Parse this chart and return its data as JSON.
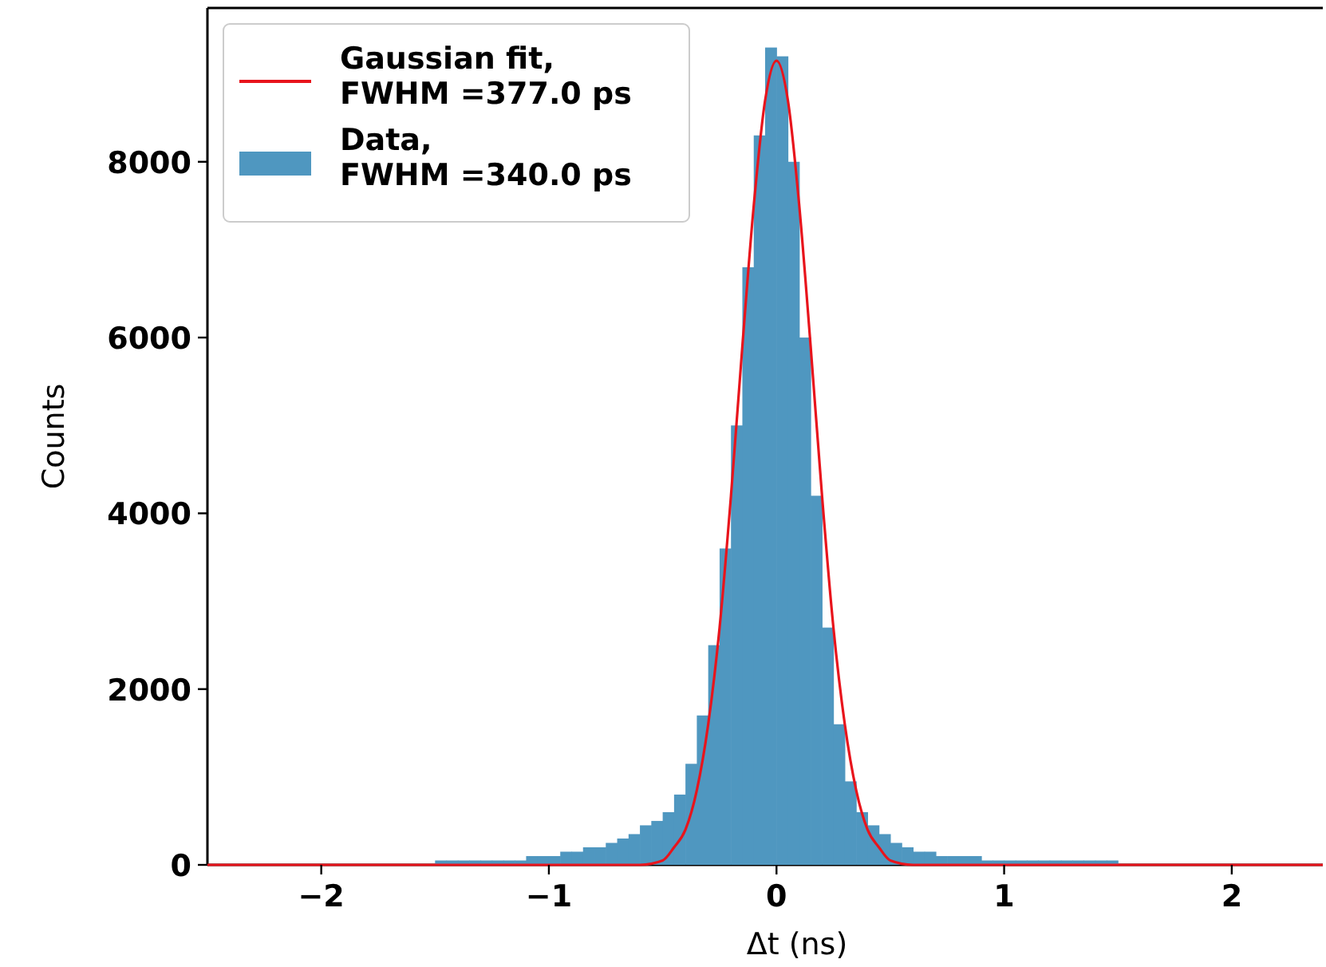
{
  "chart_data": {
    "type": "histogram",
    "xlabel": "Δt (ns)",
    "ylabel": "Counts",
    "xlim": [
      -2.5,
      2.4
    ],
    "xticks": [
      {
        "value": -2,
        "label": "−2"
      },
      {
        "value": -1,
        "label": "−1"
      },
      0,
      1,
      2
    ],
    "ylim": [
      0,
      9750
    ],
    "yticks": [
      0,
      2000,
      4000,
      6000,
      8000
    ],
    "grid": false,
    "legend": "top left",
    "bins": [
      -1.5,
      -1.45,
      -1.4,
      -1.35,
      -1.3,
      -1.25,
      -1.2,
      -1.15,
      -1.1,
      -1.05,
      -1.0,
      -0.95,
      -0.9,
      -0.85,
      -0.8,
      -0.75,
      -0.7,
      -0.65,
      -0.6,
      -0.55,
      -0.5,
      -0.45,
      -0.4,
      -0.35,
      -0.3,
      -0.25,
      -0.2,
      -0.15,
      -0.1,
      -0.05,
      0,
      0.05,
      0.1,
      0.15,
      0.2,
      0.25,
      0.3,
      0.35,
      0.4,
      0.45,
      0.5,
      0.55,
      0.6,
      0.65,
      0.7,
      0.75,
      0.8,
      0.85,
      0.9,
      0.95,
      1.0,
      1.05,
      1.1,
      1.15,
      1.2,
      1.25,
      1.3,
      1.35,
      1.4,
      1.45,
      1.5
    ],
    "series": [
      {
        "name": "Gaussian fit,\nFWHM =377.0 ps",
        "type": "line",
        "color": "#e8141c",
        "x": [
          -2.5,
          -1,
          -0.6,
          -0.5,
          -0.45,
          -0.4,
          -0.35,
          -0.3,
          -0.25,
          -0.2,
          -0.15,
          -0.1,
          -0.05,
          0,
          0.05,
          0.1,
          0.15,
          0.2,
          0.25,
          0.3,
          0.35,
          0.4,
          0.45,
          0.5,
          0.6,
          1,
          2.4
        ],
        "values": [
          0,
          0,
          0,
          50,
          200,
          400,
          850,
          1600,
          2700,
          4200,
          5900,
          7500,
          8700,
          9150,
          8700,
          7500,
          5900,
          4200,
          2700,
          1600,
          850,
          400,
          200,
          50,
          0,
          0,
          0
        ]
      },
      {
        "name": "Data,\nFWHM =340.0 ps",
        "color": "#4f97c0",
        "values": [
          50,
          50,
          50,
          50,
          50,
          50,
          50,
          50,
          100,
          100,
          100,
          150,
          150,
          200,
          200,
          250,
          300,
          350,
          450,
          500,
          600,
          800,
          1150,
          1700,
          2500,
          3600,
          5000,
          6800,
          8300,
          9300,
          9200,
          8000,
          6000,
          4200,
          2700,
          1600,
          950,
          600,
          450,
          350,
          250,
          200,
          150,
          150,
          100,
          100,
          100,
          100,
          50,
          50,
          50,
          50,
          50,
          50,
          50,
          50,
          50,
          50,
          50,
          50
        ]
      }
    ]
  }
}
